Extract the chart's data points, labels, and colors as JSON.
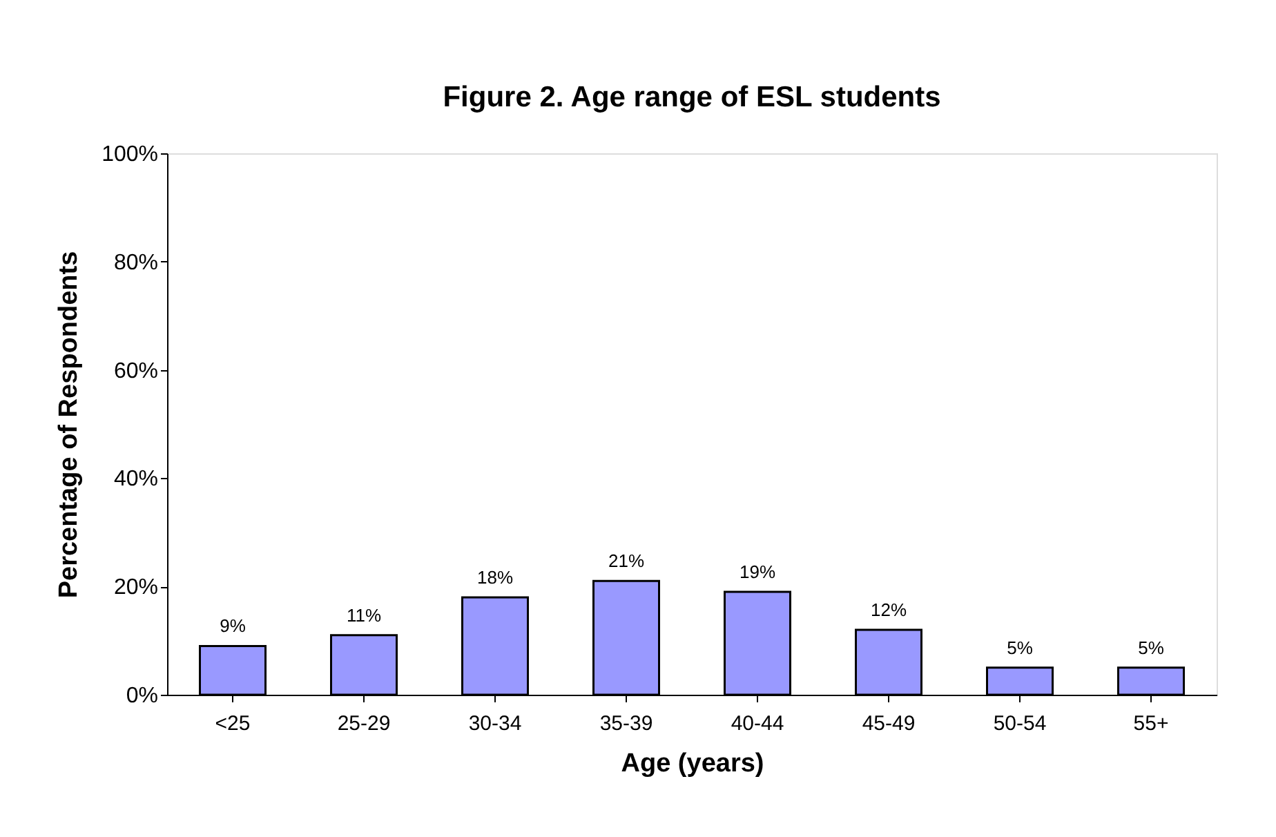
{
  "chart_data": {
    "type": "bar",
    "title": "Figure 2. Age range of ESL students",
    "xlabel": "Age (years)",
    "ylabel": "Percentage of Respondents",
    "categories": [
      "<25",
      "25-29",
      "30-34",
      "35-39",
      "40-44",
      "45-49",
      "50-54",
      "55+"
    ],
    "values": [
      9,
      11,
      18,
      21,
      19,
      12,
      5,
      5
    ],
    "value_labels": [
      "9%",
      "11%",
      "18%",
      "21%",
      "19%",
      "12%",
      "5%",
      "5%"
    ],
    "color": "#9999ff",
    "ylim": [
      0,
      100
    ],
    "yticks": [
      {
        "value": 0,
        "label": "0%"
      },
      {
        "value": 20,
        "label": "20%"
      },
      {
        "value": 40,
        "label": "40%"
      },
      {
        "value": 60,
        "label": "60%"
      },
      {
        "value": 80,
        "label": "80%"
      },
      {
        "value": 100,
        "label": "100%"
      }
    ],
    "grid": false
  }
}
